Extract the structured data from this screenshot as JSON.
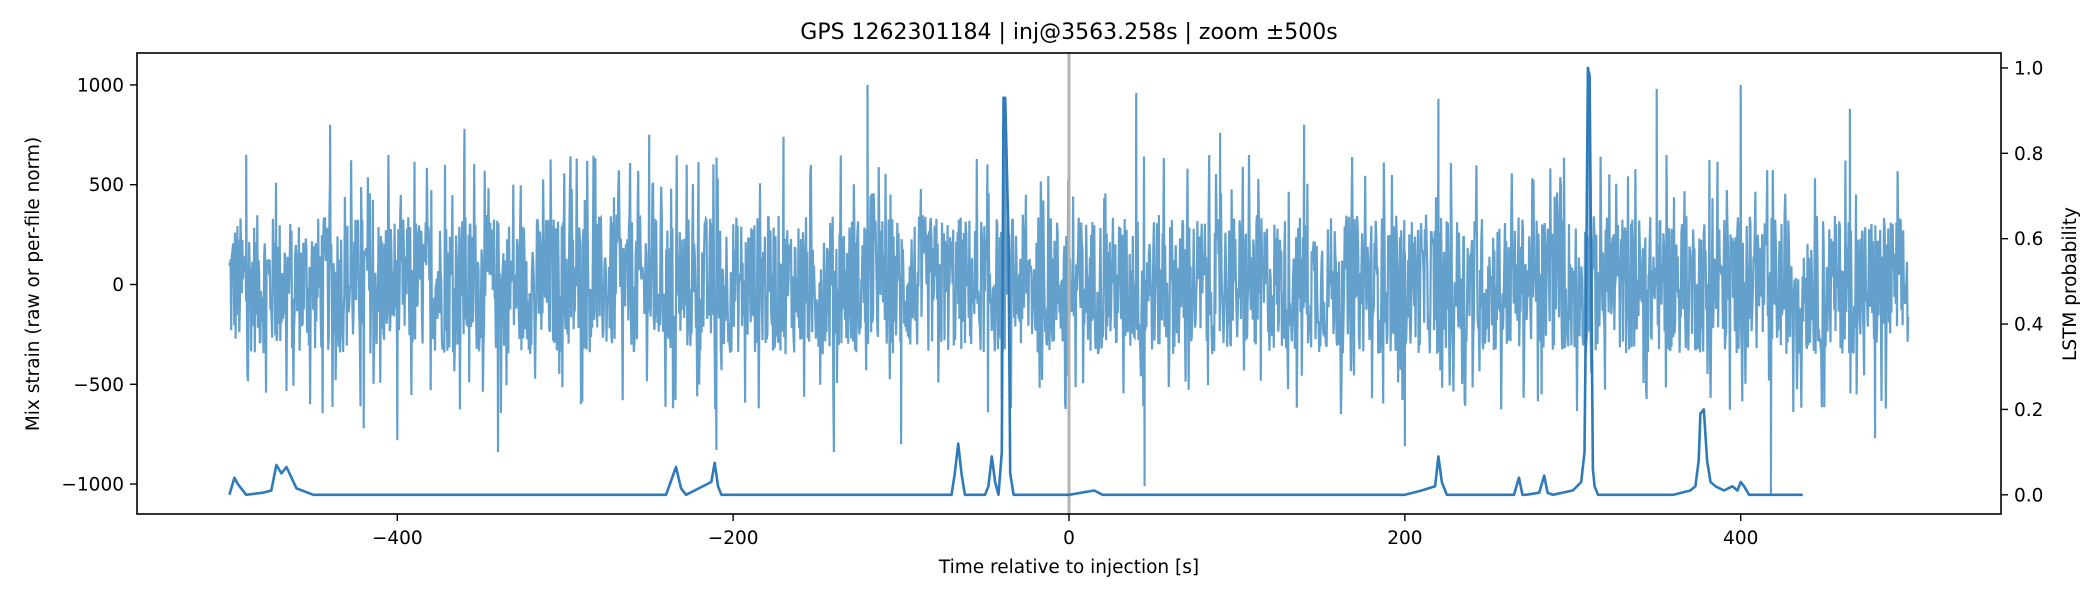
{
  "chart_data": {
    "type": "line",
    "title": "GPS 1262301184 | inj@3563.258s | zoom ±500s",
    "xlabel": "Time relative to injection [s]",
    "ylabel": "Mix strain (raw or per-file norm)",
    "y2label": "LSTM probability",
    "xlim": [
      -555,
      555
    ],
    "ylim": [
      -1150,
      1160
    ],
    "y2lim": [
      -0.045,
      1.035
    ],
    "x_ticks": [
      -400,
      -200,
      0,
      200,
      400
    ],
    "y_ticks": [
      -1000,
      -500,
      0,
      500,
      1000
    ],
    "y2_ticks": [
      0.0,
      0.2,
      0.4,
      0.6,
      0.8,
      1.0
    ],
    "x_tick_labels": [
      "−400",
      "−200",
      "0",
      "200",
      "400"
    ],
    "y_tick_labels": [
      "−1000",
      "−500",
      "0",
      "500",
      "1000"
    ],
    "y2_tick_labels": [
      "0.0",
      "0.2",
      "0.4",
      "0.6",
      "0.8",
      "1.0"
    ],
    "injection_marker_x": 0,
    "grid": false,
    "series": [
      {
        "axis": "left",
        "color": "#5b9bc9",
        "x_range": [
          -500,
          500
        ],
        "typical_band": [
          -350,
          350
        ],
        "envelope": [
          {
            "x": -490,
            "y": 650
          },
          {
            "x": -440,
            "y": 800
          },
          {
            "x": -420,
            "y": -720
          },
          {
            "x": -400,
            "y": -780
          },
          {
            "x": -360,
            "y": 780
          },
          {
            "x": -340,
            "y": -840
          },
          {
            "x": -250,
            "y": 750
          },
          {
            "x": -210,
            "y": -830
          },
          {
            "x": -170,
            "y": 740
          },
          {
            "x": -140,
            "y": -840
          },
          {
            "x": -120,
            "y": 1000
          },
          {
            "x": -100,
            "y": -800
          },
          {
            "x": -38,
            "y": 930
          },
          {
            "x": 40,
            "y": 960
          },
          {
            "x": 45,
            "y": -1010
          },
          {
            "x": 90,
            "y": 760
          },
          {
            "x": 140,
            "y": 800
          },
          {
            "x": 200,
            "y": -810
          },
          {
            "x": 220,
            "y": 930
          },
          {
            "x": 310,
            "y": 1060
          },
          {
            "x": 350,
            "y": 980
          },
          {
            "x": 400,
            "y": 1000
          },
          {
            "x": 418,
            "y": -1050
          },
          {
            "x": 465,
            "y": 880
          },
          {
            "x": 480,
            "y": -770
          }
        ]
      },
      {
        "axis": "right",
        "color": "#2f7ab9",
        "x": [
          -500,
          -497,
          -495,
          -490,
          -480,
          -475,
          -472,
          -469,
          -466,
          -463,
          -460,
          -450,
          -400,
          -300,
          -240,
          -234,
          -231,
          -228,
          -213,
          -211,
          -209,
          -207,
          -205,
          -150,
          -100,
          -70,
          -68,
          -66,
          -64,
          -62,
          -60,
          -50,
          -48,
          -46,
          -44,
          -42,
          -40,
          -39,
          -38,
          -36,
          -35,
          -33,
          -30,
          -20,
          0,
          15,
          20,
          30,
          100,
          190,
          200,
          210,
          218,
          220,
          222,
          225,
          265,
          268,
          270,
          272,
          280,
          283,
          285,
          288,
          300,
          305,
          307,
          308,
          309,
          310,
          311,
          312,
          313,
          315,
          318,
          330,
          360,
          370,
          373,
          375,
          376,
          378,
          380,
          382,
          385,
          390,
          395,
          398,
          400,
          402,
          405,
          410,
          437
        ],
        "values": [
          0.0,
          0.04,
          0.025,
          0.0,
          0.005,
          0.01,
          0.07,
          0.05,
          0.065,
          0.04,
          0.015,
          0.0,
          0.0,
          0.0,
          0.0,
          0.065,
          0.015,
          0.0,
          0.03,
          0.075,
          0.02,
          0.0,
          0.0,
          0.0,
          0.0,
          0.0,
          0.05,
          0.12,
          0.05,
          0.0,
          0.0,
          0.0,
          0.02,
          0.09,
          0.03,
          0.0,
          0.1,
          0.93,
          0.93,
          0.6,
          0.05,
          0.0,
          0.0,
          0.0,
          0.0,
          0.01,
          0.0,
          0.0,
          0.0,
          0.0,
          0.0,
          0.01,
          0.02,
          0.09,
          0.03,
          0.0,
          0.0,
          0.04,
          0.0,
          0.0,
          0.005,
          0.045,
          0.005,
          0.0,
          0.01,
          0.03,
          0.1,
          0.5,
          1.0,
          0.98,
          0.5,
          0.06,
          0.02,
          0.0,
          0.0,
          0.0,
          0.0,
          0.01,
          0.02,
          0.08,
          0.19,
          0.2,
          0.08,
          0.03,
          0.02,
          0.01,
          0.02,
          0.01,
          0.03,
          0.02,
          0.0,
          0.0,
          0.0
        ]
      }
    ]
  }
}
